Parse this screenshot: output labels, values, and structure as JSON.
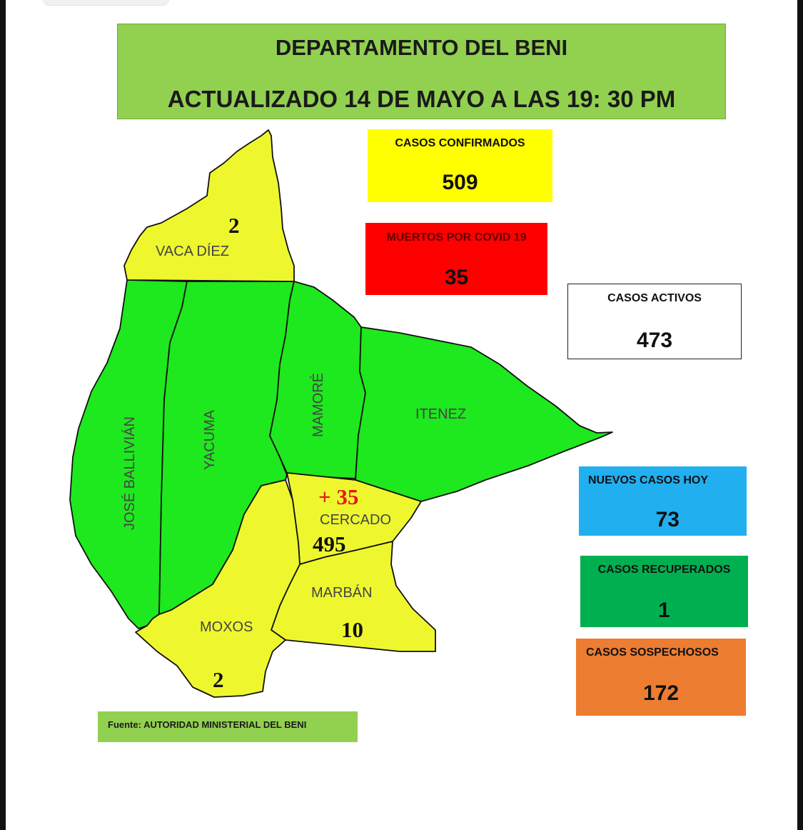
{
  "header": {
    "title": "DEPARTAMENTO DEL BENI",
    "updated": "ACTUALIZADO 14 DE MAYO A LAS 19: 30 PM"
  },
  "stats": {
    "confirmed": {
      "label": "CASOS CONFIRMADOS",
      "value": "509",
      "color": "#ffff00"
    },
    "deaths": {
      "label": "MUERTOS POR COVID 19",
      "value": "35",
      "color": "#ff0000"
    },
    "active": {
      "label": "CASOS ACTIVOS",
      "value": "473",
      "color": "#ffffff"
    },
    "new_today": {
      "label": "NUEVOS CASOS HOY",
      "value": "73",
      "color": "#21aff0"
    },
    "recovered": {
      "label": "CASOS RECUPERADOS",
      "value": "1",
      "color": "#00b050"
    },
    "suspected": {
      "label": "CASOS SOSPECHOSOS",
      "value": "172",
      "color": "#ed7d31"
    }
  },
  "map": {
    "colors": {
      "cases": "#eef72e",
      "no_cases": "#1ee81e"
    },
    "regions": {
      "vaca_diez": {
        "name": "VACA DÍEZ",
        "cases": "2"
      },
      "jose_ballivian": {
        "name": "JOSÉ BALLIVIÁN"
      },
      "yacuma": {
        "name": "YACUMA"
      },
      "mamore": {
        "name": "MAMORÉ"
      },
      "itenez": {
        "name": "ITENEZ"
      },
      "cercado": {
        "name": "CERCADO",
        "new_cases": "+ 35",
        "cases": "495"
      },
      "marban": {
        "name": "MARBÁN",
        "cases": "10"
      },
      "moxos": {
        "name": "MOXOS",
        "cases": "2"
      }
    }
  },
  "source": "Fuente: AUTORIDAD MINISTERIAL DEL BENI"
}
